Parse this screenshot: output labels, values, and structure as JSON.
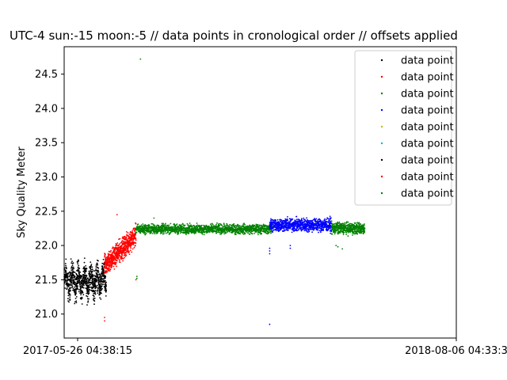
{
  "chart_data": {
    "type": "scatter",
    "title": "UTC-4 sun:-15 moon:-5 // data points in cronological order // offsets applied",
    "xlabel": "",
    "ylabel": "Sky Quality Meter",
    "x_tick_labels": [
      "2017-05-26 04:38:15",
      "2018-08-06 04:33:3"
    ],
    "x_unit": "days since 2017-05-26 04:38:15",
    "xlim": [
      0,
      437
    ],
    "ylim": [
      20.65,
      24.9
    ],
    "y_ticks": [
      "21.0",
      "21.5",
      "22.0",
      "22.5",
      "23.0",
      "23.5",
      "24.0",
      "24.5"
    ],
    "grid": false,
    "legend_position": "top-right",
    "series": [
      {
        "name": "data point",
        "color": "#000000",
        "x_range": [
          0,
          47
        ],
        "y_center": 21.5,
        "spread": 0.22,
        "count": 900,
        "outliers": []
      },
      {
        "name": "data point",
        "color": "#ff0000",
        "x_range": [
          45,
          80
        ],
        "y_center": 21.95,
        "spread": 0.22,
        "count": 700,
        "outliers": [
          [
            45,
            20.95
          ],
          [
            45,
            20.9
          ],
          [
            59,
            22.45
          ],
          [
            80,
            21.5
          ]
        ]
      },
      {
        "name": "data point",
        "color": "#008000",
        "x_range": [
          80,
          232
        ],
        "y_center": 22.24,
        "spread": 0.05,
        "count": 1600,
        "outliers": [
          [
            85,
            24.72
          ],
          [
            81,
            21.55
          ],
          [
            81,
            21.52
          ],
          [
            100,
            22.4
          ]
        ]
      },
      {
        "name": "data point",
        "color": "#0000ff",
        "x_range": [
          229,
          298
        ],
        "y_center": 22.3,
        "spread": 0.07,
        "count": 900,
        "outliers": [
          [
            229,
            21.96
          ],
          [
            229,
            21.92
          ],
          [
            229,
            21.88
          ],
          [
            229,
            20.85
          ],
          [
            252,
            22.0
          ],
          [
            252,
            21.96
          ]
        ]
      },
      {
        "name": "data point",
        "color": "#bfbf00",
        "x_range": [],
        "y_center": 0,
        "spread": 0,
        "count": 0,
        "outliers": []
      },
      {
        "name": "data point",
        "color": "#00bfbf",
        "x_range": [],
        "y_center": 0,
        "spread": 0,
        "count": 0,
        "outliers": []
      },
      {
        "name": "data point",
        "color": "#000000",
        "x_range": [],
        "y_center": 0,
        "spread": 0,
        "count": 0,
        "outliers": []
      },
      {
        "name": "data point",
        "color": "#ff0000",
        "x_range": [],
        "y_center": 0,
        "spread": 0,
        "count": 0,
        "outliers": []
      },
      {
        "name": "data point",
        "color": "#008000",
        "x_range": [
          298,
          335
        ],
        "y_center": 22.25,
        "spread": 0.06,
        "count": 500,
        "outliers": [
          [
            303,
            22.0
          ],
          [
            305,
            21.98
          ],
          [
            310,
            21.95
          ]
        ]
      }
    ]
  }
}
